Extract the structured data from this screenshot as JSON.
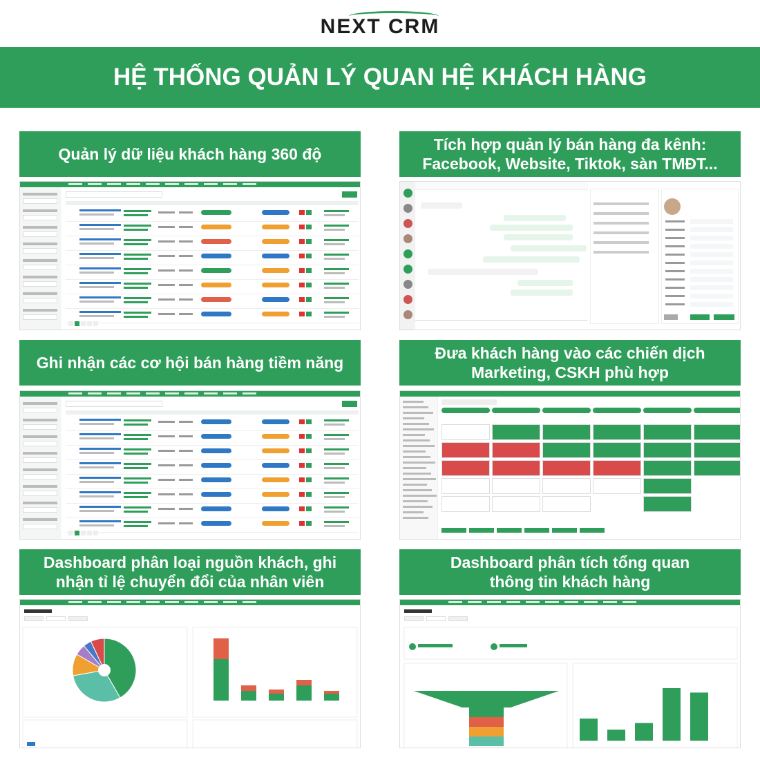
{
  "logo": {
    "text": "NEXT CRM"
  },
  "header": {
    "title": "HỆ THỐNG QUẢN LÝ QUAN HỆ KHÁCH HÀNG"
  },
  "panels": [
    {
      "lines": [
        "Quản lý dữ liệu khách hàng 360 độ"
      ]
    },
    {
      "lines": [
        "Tích hợp quản lý bán hàng đa kênh:",
        "Facebook, Website, Tiktok, sàn TMĐT..."
      ]
    },
    {
      "lines": [
        "Ghi nhận các cơ hội bán hàng tiềm năng"
      ]
    },
    {
      "lines": [
        "Đưa khách hàng vào các chiến dịch",
        "Marketing, CSKH phù hợp"
      ]
    },
    {
      "lines": [
        "Dashboard phân loại nguồn khách, ghi",
        "nhận tỉ lệ chuyển đổi của nhân viên"
      ]
    },
    {
      "lines": [
        "Dashboard phân tích tổng quan",
        "thông tin khách hàng"
      ]
    }
  ]
}
